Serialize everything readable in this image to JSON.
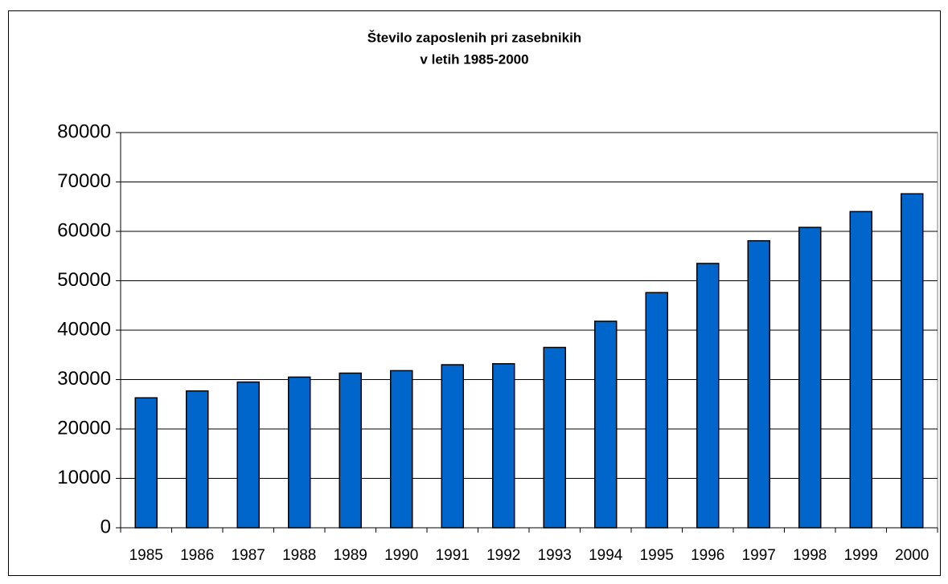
{
  "chart_data": {
    "type": "bar",
    "title": [
      "Število zaposlenih pri zasebnikih",
      "v letih 1985-2000"
    ],
    "categories": [
      "1985",
      "1986",
      "1987",
      "1988",
      "1989",
      "1990",
      "1991",
      "1992",
      "1993",
      "1994",
      "1995",
      "1996",
      "1997",
      "1998",
      "1999",
      "2000"
    ],
    "values": [
      26300,
      27700,
      29500,
      30500,
      31300,
      31800,
      33000,
      33200,
      36500,
      41800,
      47600,
      53500,
      58100,
      60800,
      64000,
      67600
    ],
    "color": "#0066cc",
    "ylim": [
      0,
      80000
    ],
    "yticks": [
      0,
      10000,
      20000,
      30000,
      40000,
      50000,
      60000,
      70000,
      80000
    ],
    "grid": true
  }
}
